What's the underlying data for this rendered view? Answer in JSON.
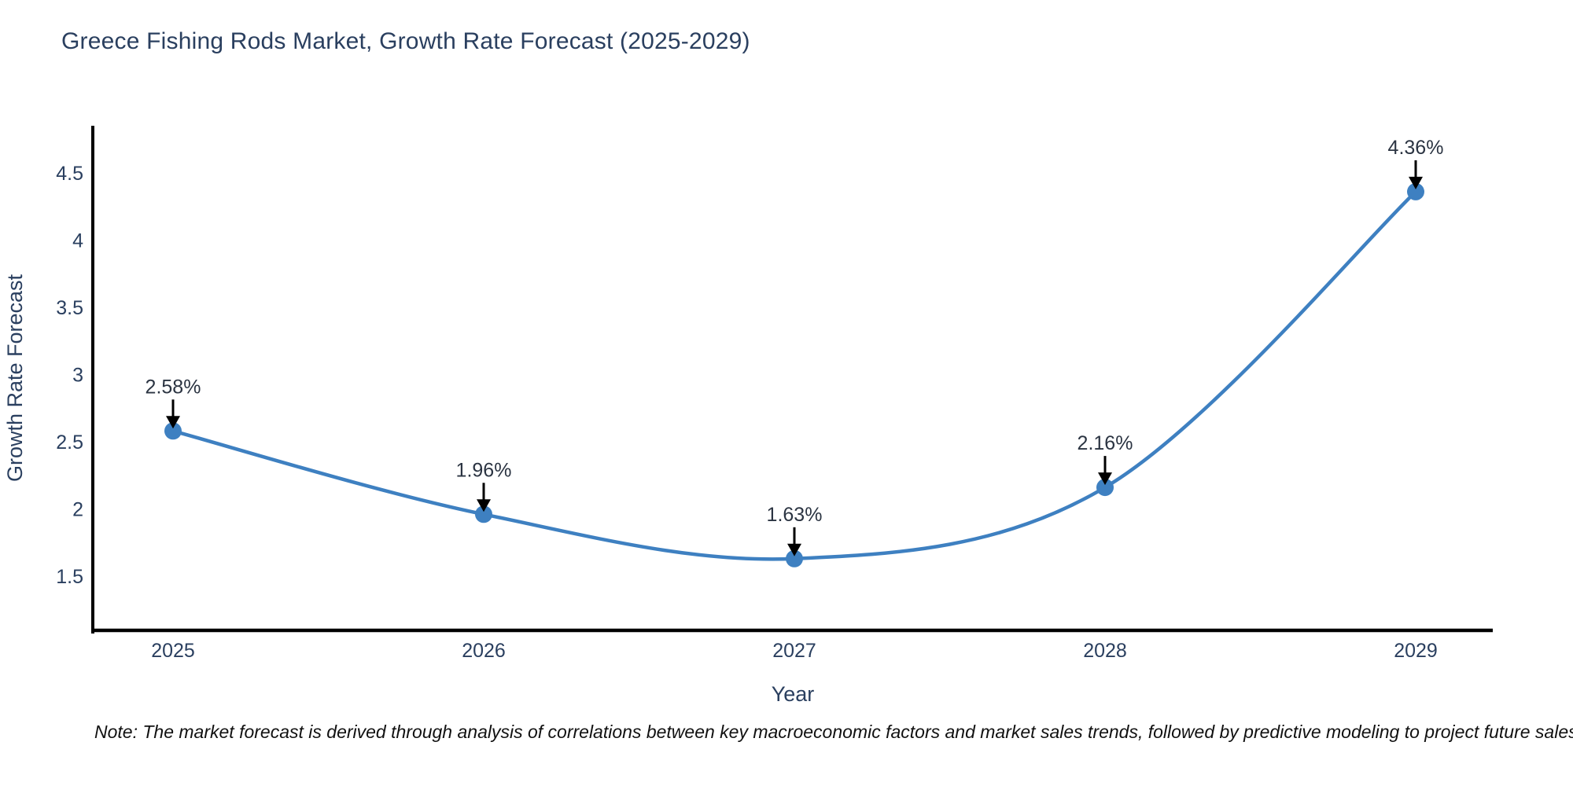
{
  "note": "Note: The market forecast is derived through analysis of correlations between key macroeconomic factors and market sales trends, followed by predictive modeling to project future sales",
  "chart_data": {
    "type": "line",
    "title": "Greece Fishing Rods Market, Growth Rate Forecast (2025-2029)",
    "x": [
      "2025",
      "2026",
      "2027",
      "2028",
      "2029"
    ],
    "values": [
      2.58,
      1.96,
      1.63,
      2.16,
      4.36
    ],
    "point_labels": [
      "2.58%",
      "1.96%",
      "1.63%",
      "2.16%",
      "4.36%"
    ],
    "xlabel": "Year",
    "ylabel": "Growth Rate Forecast",
    "yticks": [
      1.5,
      2,
      2.5,
      3,
      3.5,
      4,
      4.5
    ],
    "ylim": [
      1.1,
      4.85
    ],
    "grid": false,
    "legend": "none",
    "line_shape": "spline",
    "colors": {
      "line": "#3e80c1",
      "marker": "#3e80c1",
      "arrow": "#000000",
      "axis": "#000000",
      "text": "#2a3f5f",
      "annotation": "#2b3442",
      "note": "#111111"
    }
  }
}
